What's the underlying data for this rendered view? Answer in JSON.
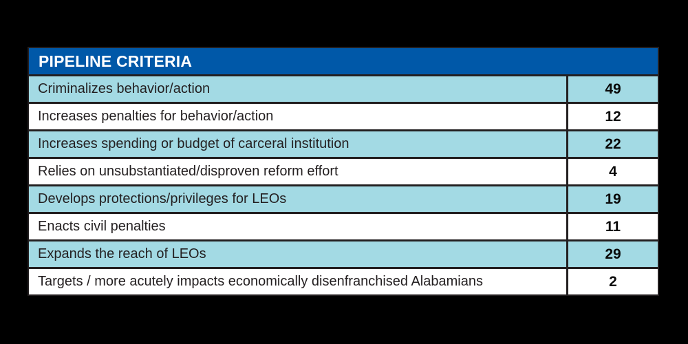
{
  "chart_data": {
    "type": "table",
    "title": "PIPELINE CRITERIA",
    "categories": [
      "Criminalizes behavior/action",
      "Increases penalties for behavior/action",
      "Increases spending or budget of carceral institution",
      "Relies on unsubstantiated/disproven reform effort",
      "Develops protections/privileges for LEOs",
      "Enacts civil penalties",
      "Expands the reach of LEOs",
      "Targets / more acutely impacts economically disenfranchised Alabamians"
    ],
    "values": [
      49,
      12,
      22,
      4,
      19,
      11,
      29,
      2
    ],
    "layout_hints": {
      "header_position": "top",
      "row_striping": "alternating starting with highlighted row",
      "value_column": "right-aligned numeric column, centered bold numbers"
    }
  },
  "table": {
    "header": "PIPELINE CRITERIA",
    "rows": [
      {
        "label": "Criminalizes behavior/action",
        "value": "49"
      },
      {
        "label": "Increases penalties for behavior/action",
        "value": "12"
      },
      {
        "label": "Increases spending or budget of carceral institution",
        "value": "22"
      },
      {
        "label": "Relies on unsubstantiated/disproven reform effort",
        "value": "4"
      },
      {
        "label": "Develops protections/privileges for LEOs",
        "value": "19"
      },
      {
        "label": "Enacts civil penalties",
        "value": "11"
      },
      {
        "label": "Expands the reach of LEOs",
        "value": "29"
      },
      {
        "label": "Targets / more acutely impacts economically disenfranchised Alabamians",
        "value": "2"
      }
    ]
  },
  "colors": {
    "page_background": "#000000",
    "header_background": "#0058a8",
    "header_text": "#ffffff",
    "row_highlight": "#a3dae4",
    "row_plain": "#ffffff",
    "border": "#231f20",
    "text": "#231f20"
  }
}
